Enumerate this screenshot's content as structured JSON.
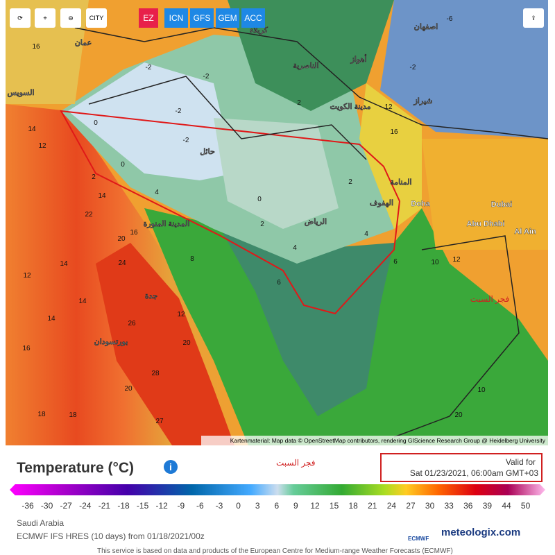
{
  "toolbar": {
    "city": "CITY",
    "models": [
      "EZ",
      "ICN",
      "GFS",
      "GEM",
      "ACC"
    ]
  },
  "map": {
    "labels": [
      "16",
      "-2",
      "-2",
      "0",
      "-2",
      "-2",
      "0",
      "2",
      "4",
      "14",
      "22",
      "20",
      "16",
      "14",
      "24",
      "12",
      "14",
      "14",
      "26",
      "16",
      "28",
      "20",
      "18",
      "18",
      "27",
      "0",
      "2",
      "4",
      "6",
      "2",
      "2",
      "4",
      "6",
      "8",
      "12",
      "20",
      "10",
      "12",
      "10",
      "20",
      "12",
      "16",
      "-6",
      "-2",
      "14",
      "12",
      "عمان",
      "السويس",
      "المدينة المنورة",
      "جدة",
      "بورتسودان",
      "الرياض",
      "مدينة الكويت",
      "Doha",
      "Dubai",
      "Abu Dhabi",
      "Al Ain",
      "حائل",
      "الهفوف",
      "المنامة",
      "الناصرية",
      "كربلاء",
      "أهواز",
      "اصفهان",
      "شيراز"
    ],
    "annotation": "فجر السبت",
    "attribution": "Kartenmaterial: Map data © OpenStreetMap contributors, rendering GIScience Research Group @ Heidelberg University"
  },
  "footer": {
    "title": "Temperature (°C)",
    "note": "فجر السبت",
    "valid_label": "Valid for",
    "valid_time": "Sat 01/23/2021, 06:00am GMT+03",
    "scale": [
      -36,
      -30,
      -27,
      -24,
      -21,
      -18,
      -15,
      -12,
      -9,
      -6,
      -3,
      0,
      3,
      6,
      9,
      12,
      15,
      18,
      21,
      24,
      27,
      30,
      33,
      36,
      39,
      44,
      50
    ],
    "region": "Saudi Arabia",
    "model_run": "ECMWF IFS HRES (10 days) from 01/18/2021/00z",
    "brand": "meteologix.com",
    "ecmwf": "ECMWF",
    "disclaimer": "This service is based on data and products of the European Centre for Medium-range Weather Forecasts (ECMWF)"
  }
}
